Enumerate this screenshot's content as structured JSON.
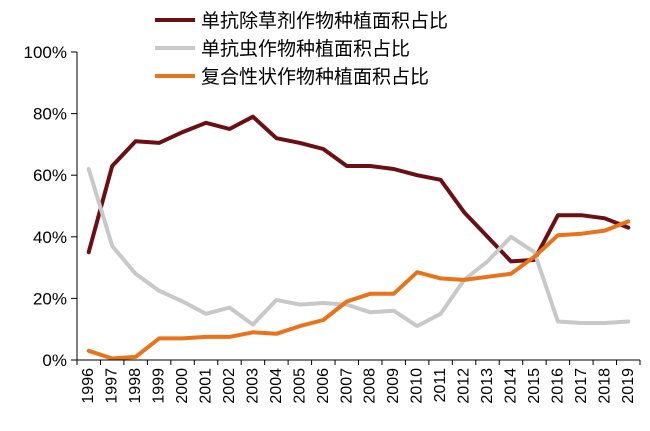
{
  "chart_data": {
    "type": "line",
    "title": "",
    "xlabel": "",
    "ylabel": "",
    "x": [
      "1996",
      "1997",
      "1998",
      "1999",
      "2000",
      "2001",
      "2002",
      "2003",
      "2004",
      "2005",
      "2006",
      "2007",
      "2008",
      "2009",
      "2010",
      "2011",
      "2012",
      "2013",
      "2014",
      "2015",
      "2016",
      "2017",
      "2018",
      "2019"
    ],
    "ylim": [
      0,
      100
    ],
    "yticks": [
      0,
      20,
      40,
      60,
      80,
      100
    ],
    "ytick_labels": [
      "0%",
      "20%",
      "40%",
      "60%",
      "80%",
      "100%"
    ],
    "grid": false,
    "legend_position": "top-center",
    "series": [
      {
        "name": "单抗除草剂作物种植面积占比",
        "color": "#6b0f12",
        "values": [
          35,
          63,
          71,
          70.5,
          74,
          77,
          75,
          79,
          72,
          70.5,
          68.5,
          63,
          63,
          62,
          60,
          58.5,
          48,
          40,
          32,
          32.5,
          47,
          47,
          46,
          43
        ]
      },
      {
        "name": "单抗虫作物种植面积占比",
        "color": "#c8c8c8",
        "values": [
          62,
          37,
          28,
          22.5,
          19,
          15,
          17,
          11.5,
          19.5,
          18,
          18.5,
          18,
          15.5,
          16,
          11,
          15,
          26,
          32,
          40,
          35,
          12.5,
          12,
          12,
          12.5
        ]
      },
      {
        "name": "复合性状作物种植面积占比",
        "color": "#e8731a",
        "values": [
          3,
          0.5,
          1,
          7,
          7,
          7.5,
          7.5,
          9,
          8.5,
          11,
          13,
          19,
          21.5,
          21.5,
          28.5,
          26.5,
          26,
          27,
          28,
          33.5,
          40.5,
          41,
          42,
          45
        ]
      }
    ]
  }
}
